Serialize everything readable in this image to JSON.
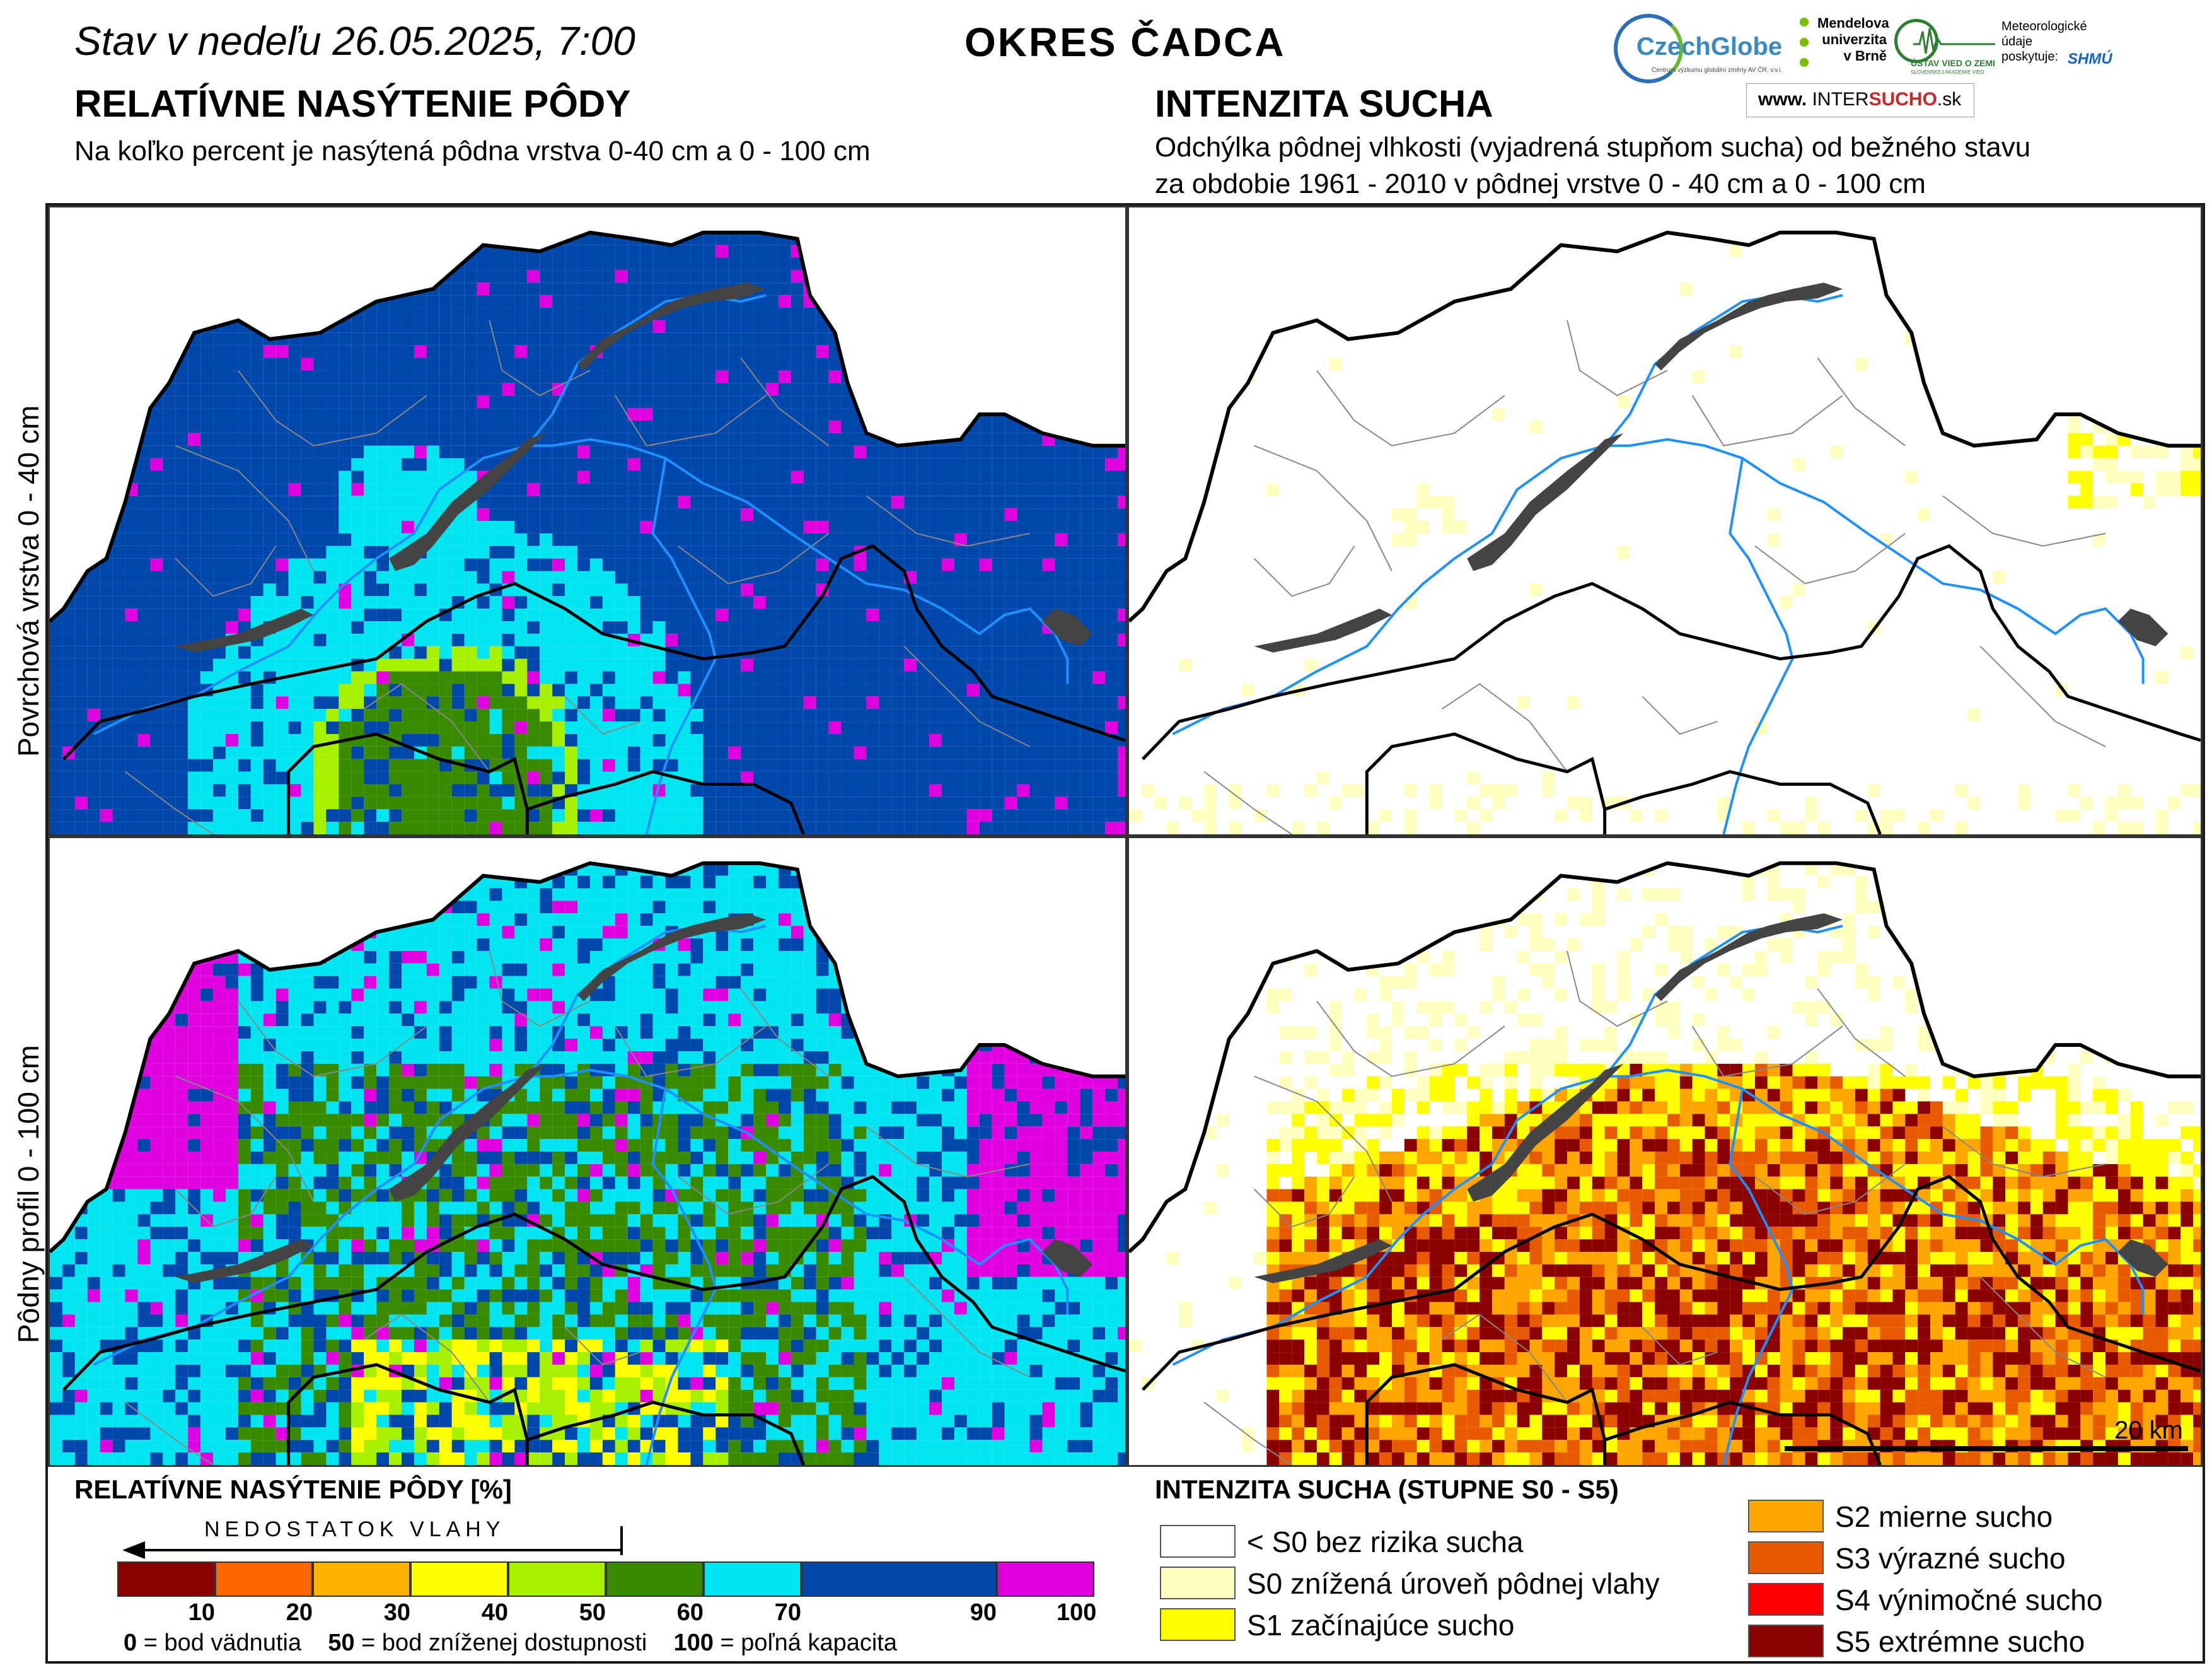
{
  "header": {
    "status_prefix": "Stav v nedeľu",
    "datetime": "26.05.2025, 7:00",
    "district": "OKRES ČADCA"
  },
  "logos": {
    "czechglobe": "CzechGlobe",
    "czechglobe_sub": "Centrum výzkumu globální změny AV ČR, v.v.i.",
    "mendelu": "Mendelova univerzita v Brně",
    "uvz": "ÚSTAV VIED O ZEMI",
    "uvz_sub": "SLOVENSKEJ AKADÉMIE VIED",
    "meteo_note": "Meteorologické údaje poskytuje:",
    "shmu": "SHMÚ",
    "intersucho_prefix": "www.",
    "intersucho_name_a": "INTER",
    "intersucho_name_b": "SUCHO",
    "intersucho_suffix": ".sk"
  },
  "left_section": {
    "title": "RELATÍVNE NASÝTENIE PÔDY",
    "subtitle": "Na koľko percent je nasýtená pôdna vrstva 0-40 cm a 0 - 100 cm"
  },
  "right_section": {
    "title": "INTENZITA SUCHA",
    "subtitle_line1": "Odchýlka pôdnej vlhkosti (vyjadrená stupňom sucha) od bežného stavu",
    "subtitle_line2": "za obdobie 1961 - 2010 v pôdnej vrstve 0 - 40 cm a 0 - 100 cm"
  },
  "row_labels": {
    "top": "Povrchová vrstva 0 - 40 cm",
    "bottom": "Pôdny profil 0 - 100 cm"
  },
  "scale_bar": {
    "label": "20 km"
  },
  "saturation_legend": {
    "title": "RELATÍVNE NASÝTENIE PÔDY [%]",
    "arrow_label": "NEDOSTATOK VLAHY",
    "bins": [
      {
        "color": "#8b0000",
        "label": "10"
      },
      {
        "color": "#ff6600",
        "label": "20"
      },
      {
        "color": "#ffb300",
        "label": "30"
      },
      {
        "color": "#ffff00",
        "label": "40"
      },
      {
        "color": "#a6f000",
        "label": "50"
      },
      {
        "color": "#3a8a00",
        "label": "60"
      },
      {
        "color": "#00e5f0",
        "label": "70"
      },
      {
        "color": "#0047ab",
        "label": "90"
      },
      {
        "color": "#e000e0",
        "label": "100"
      }
    ],
    "note_0_value": "0",
    "note_0_text": "= bod vädnutia",
    "note_50_value": "50",
    "note_50_text": "= bod zníženej dostupnosti",
    "note_100_value": "100",
    "note_100_text": "= poľná kapacita"
  },
  "drought_legend": {
    "title": "INTENZITA SUCHA (STUPNE S0 - S5)",
    "items": [
      {
        "color": "#ffffff",
        "label": "< S0 bez rizika sucha"
      },
      {
        "color": "#ffffc0",
        "label": "S0 znížená úroveň pôdnej vlahy"
      },
      {
        "color": "#ffff00",
        "label": "S1 začínajúce sucho"
      },
      {
        "color": "#ffa500",
        "label": "S2 mierne sucho"
      },
      {
        "color": "#e85a00",
        "label": "S3 výrazné sucho"
      },
      {
        "color": "#ff0000",
        "label": "S4 výnimočné sucho"
      },
      {
        "color": "#8b0000",
        "label": "S5 extrémne sucho"
      }
    ]
  },
  "map_colors": {
    "water": "#1e90ff",
    "reservoir": "#444444",
    "border": "#000000",
    "district_lines": "#888888"
  }
}
